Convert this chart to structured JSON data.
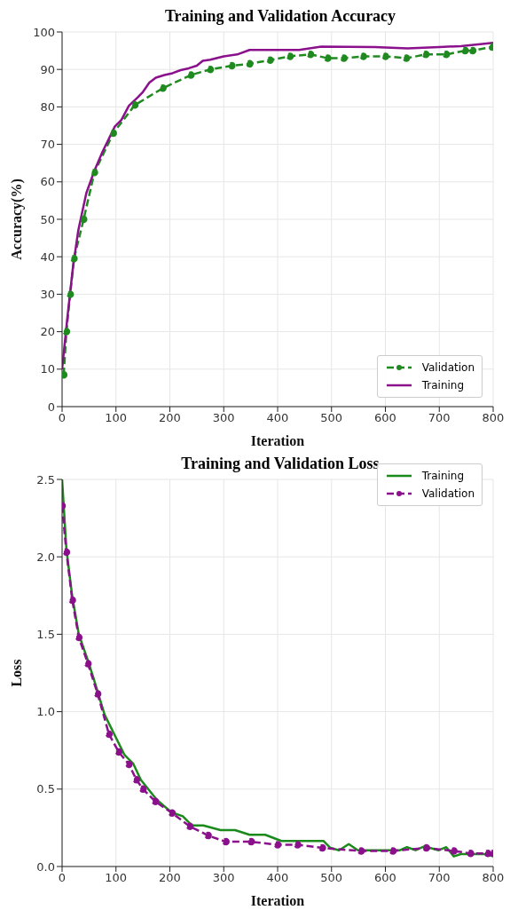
{
  "chart_data": [
    {
      "type": "line",
      "title": "Training and Validation Accuracy",
      "xlabel": "Iteration",
      "ylabel": "Accuracy(%)",
      "xlim": [
        0,
        800
      ],
      "xticks": [
        0,
        100,
        200,
        300,
        400,
        500,
        600,
        700,
        800
      ],
      "ylim": [
        0,
        100
      ],
      "yticks": [
        0,
        10,
        20,
        30,
        40,
        50,
        60,
        70,
        80,
        90,
        100
      ],
      "grid": true,
      "legend": "bottom right",
      "series": [
        {
          "name": "Validation",
          "color": "#1f8a1f",
          "marker": "circle",
          "line_style": "dashed",
          "x": [
            3,
            8,
            15,
            22,
            40,
            60,
            95,
            135,
            187,
            239,
            275,
            315,
            348,
            386,
            423,
            461,
            493,
            523,
            559,
            600,
            639,
            675,
            713,
            748,
            762,
            798
          ],
          "values": [
            8.5,
            20,
            30,
            39.5,
            50,
            62.5,
            73,
            80.5,
            85,
            88.5,
            90,
            91,
            91.5,
            92.5,
            93.5,
            94,
            93,
            93,
            93.5,
            93.5,
            93,
            94,
            94,
            95,
            95,
            96
          ]
        },
        {
          "name": "Training",
          "color": "#8b108b",
          "marker": "none",
          "line_style": "solid",
          "x": [
            0,
            10,
            20,
            30,
            45,
            60,
            75,
            98,
            110,
            124,
            140,
            150,
            162,
            174,
            190,
            205,
            220,
            235,
            250,
            261,
            275,
            300,
            325,
            348,
            400,
            440,
            481,
            580,
            641,
            700,
            740,
            800
          ],
          "values": [
            10,
            24,
            37,
            47,
            57,
            63,
            68,
            74.8,
            76.5,
            80.3,
            82.5,
            84,
            86.5,
            87.8,
            88.5,
            89,
            89.8,
            90.3,
            91,
            92.3,
            92.6,
            93.5,
            94,
            95.2,
            95.2,
            95.2,
            96.1,
            96,
            95.6,
            96,
            96.2,
            97.1
          ]
        }
      ]
    },
    {
      "type": "line",
      "title": "Training and Validation Loss",
      "xlabel": "Iteration",
      "ylabel": "Loss",
      "xlim": [
        0,
        800
      ],
      "xticks": [
        0,
        100,
        200,
        300,
        400,
        500,
        600,
        700,
        800
      ],
      "ylim": [
        0,
        2.5
      ],
      "yticks": [
        {
          "value": 0,
          "label": "0.0"
        },
        0.5,
        {
          "value": 1,
          "label": "1.0"
        },
        1.5,
        {
          "value": 2,
          "label": "2.0"
        },
        2.5
      ],
      "grid": true,
      "legend": "top right",
      "series": [
        {
          "name": "Training",
          "color": "#1a8a1a",
          "marker": "none",
          "line_style": "solid",
          "x": [
            0,
            8,
            19,
            31,
            48,
            58,
            79,
            116,
            132,
            146,
            176,
            203,
            224,
            241,
            262,
            294,
            321,
            348,
            377,
            407,
            485,
            498,
            514,
            532,
            549,
            627,
            640,
            656,
            672,
            699,
            713,
            727,
            740,
            789,
            800
          ],
          "values": [
            2.5,
            2.05,
            1.74,
            1.5,
            1.33,
            1.22,
            0.98,
            0.72,
            0.665,
            0.56,
            0.43,
            0.35,
            0.325,
            0.265,
            0.265,
            0.235,
            0.235,
            0.205,
            0.205,
            0.165,
            0.165,
            0.12,
            0.105,
            0.145,
            0.105,
            0.105,
            0.125,
            0.105,
            0.13,
            0.105,
            0.125,
            0.065,
            0.08,
            0.08,
            0.065
          ]
        },
        {
          "name": "Validation",
          "color": "#8b108b",
          "marker": "circle",
          "line_style": "dashed",
          "x": [
            0,
            8,
            19,
            31,
            48,
            66,
            87,
            105,
            124,
            138,
            150,
            173,
            204,
            237,
            271,
            304,
            351,
            400,
            437,
            483,
            555,
            614,
            676,
            727,
            758,
            790,
            800
          ],
          "values": [
            2.33,
            2.03,
            1.72,
            1.48,
            1.31,
            1.115,
            0.855,
            0.74,
            0.66,
            0.56,
            0.5,
            0.42,
            0.345,
            0.26,
            0.2,
            0.16,
            0.16,
            0.14,
            0.14,
            0.12,
            0.1,
            0.1,
            0.12,
            0.1,
            0.085,
            0.085,
            0.085
          ]
        }
      ]
    }
  ]
}
